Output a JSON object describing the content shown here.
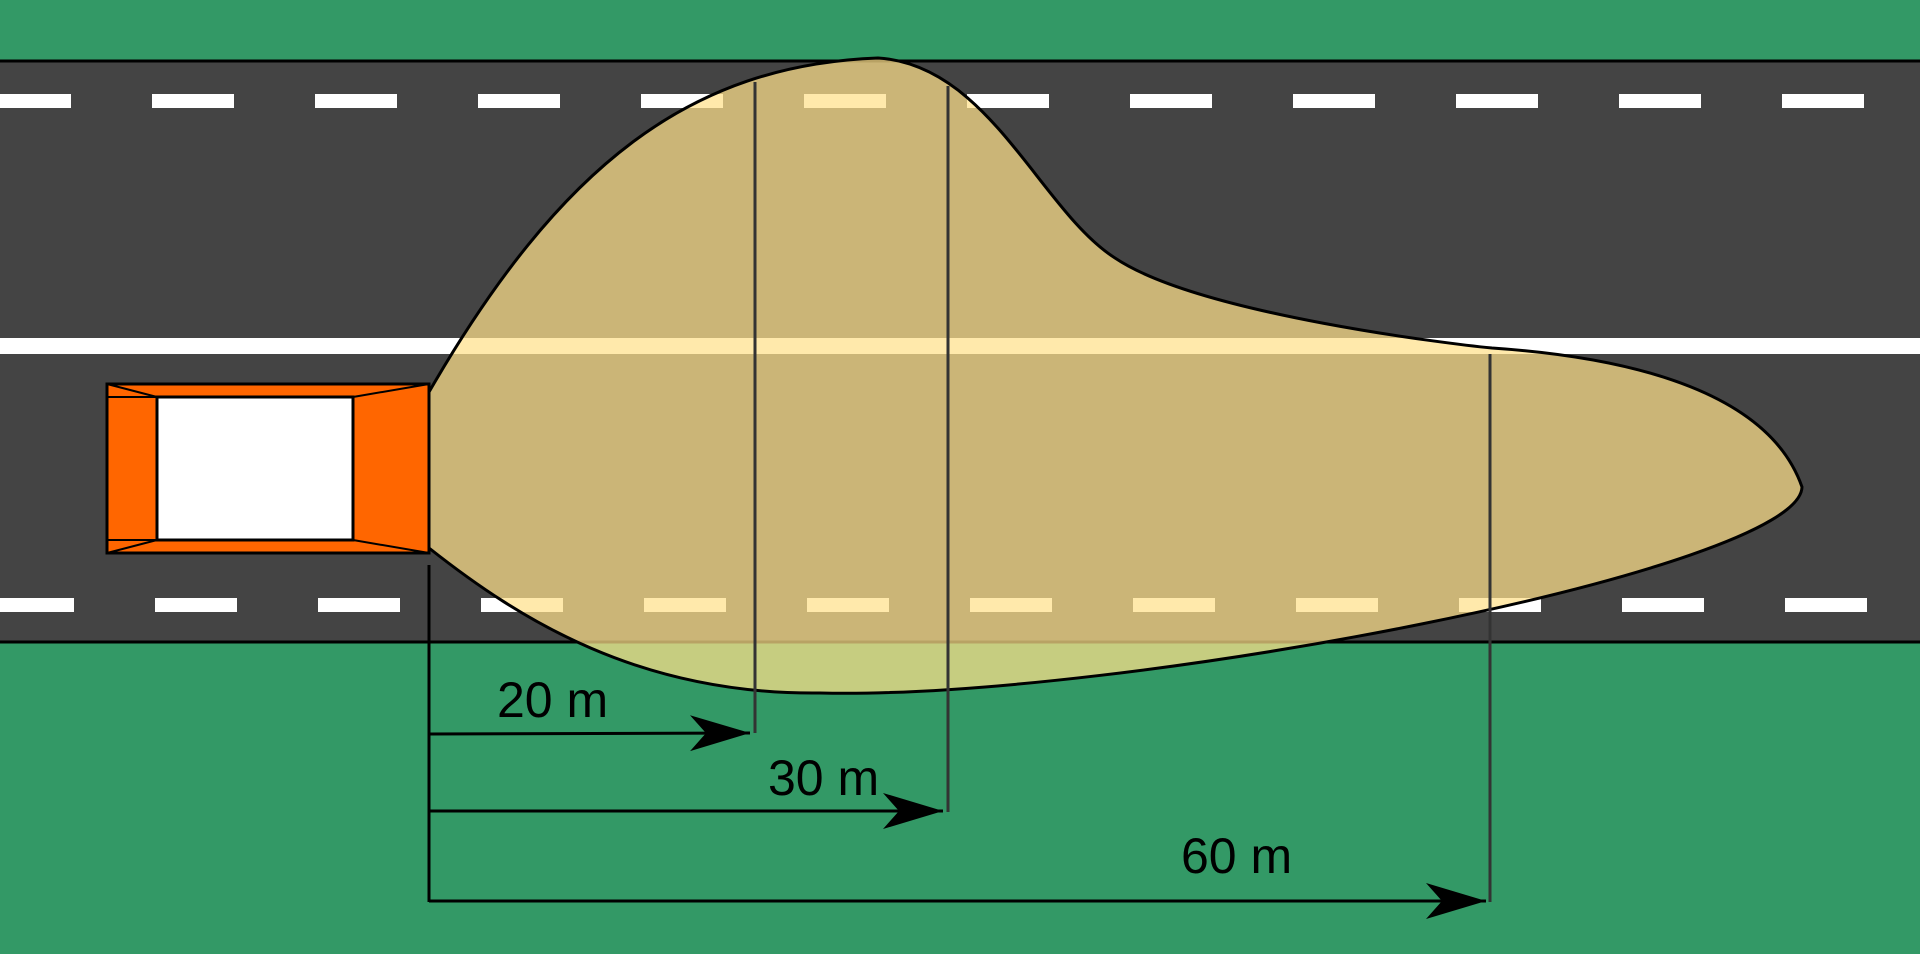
{
  "colors": {
    "grass": "#339966",
    "road": "#444444",
    "lane_marking": "#ffffff",
    "edge_line": "#000000",
    "car_body": "#ff6600",
    "car_window": "#ffffff",
    "beam_fill": "#ffe08a",
    "beam_outline": "#000000",
    "dimension_line": "#000000",
    "distance_marker": "#333333"
  },
  "icons": {
    "vehicle": "car-top-view-icon",
    "arrowhead": "arrow-right-icon"
  },
  "distances": [
    {
      "label": "20 m"
    },
    {
      "label": "30 m"
    },
    {
      "label": "60 m"
    }
  ]
}
